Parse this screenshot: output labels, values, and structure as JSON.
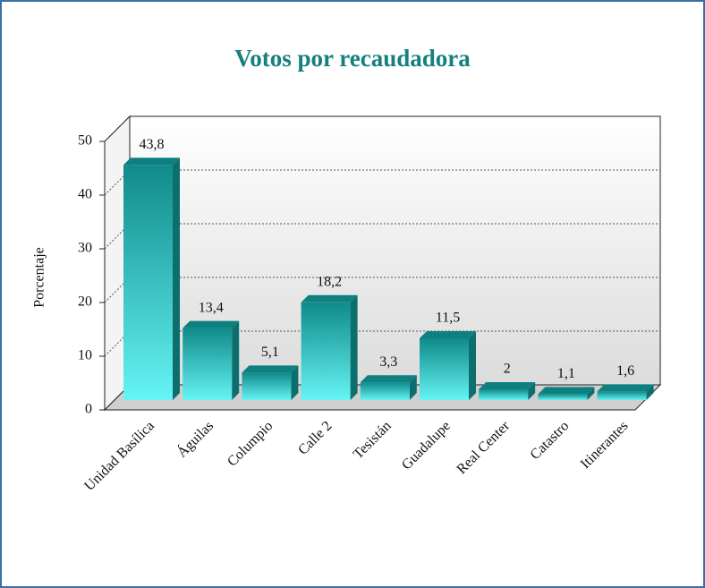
{
  "chart_data": {
    "type": "bar",
    "title": "Votos por recaudadora",
    "y_label": "Porcentaje",
    "categories": [
      "Unidad Basílica",
      "Águilas",
      "Columpio",
      "Calle 2",
      "Tesistán",
      "Guadalupe",
      "Real Center",
      "Catastro",
      "Itinerantes"
    ],
    "values": [
      43.8,
      13.4,
      5.1,
      18.2,
      3.3,
      11.5,
      2,
      1.1,
      1.6
    ],
    "value_labels": [
      "43,8",
      "13,4",
      "5,1",
      "18,2",
      "3,3",
      "11,5",
      "2",
      "1,1",
      "1,6"
    ],
    "color": "#1aa0a0",
    "ylim": [
      0,
      50
    ],
    "yticks": [
      0,
      10,
      20,
      30,
      40,
      50
    ],
    "grid": true
  }
}
